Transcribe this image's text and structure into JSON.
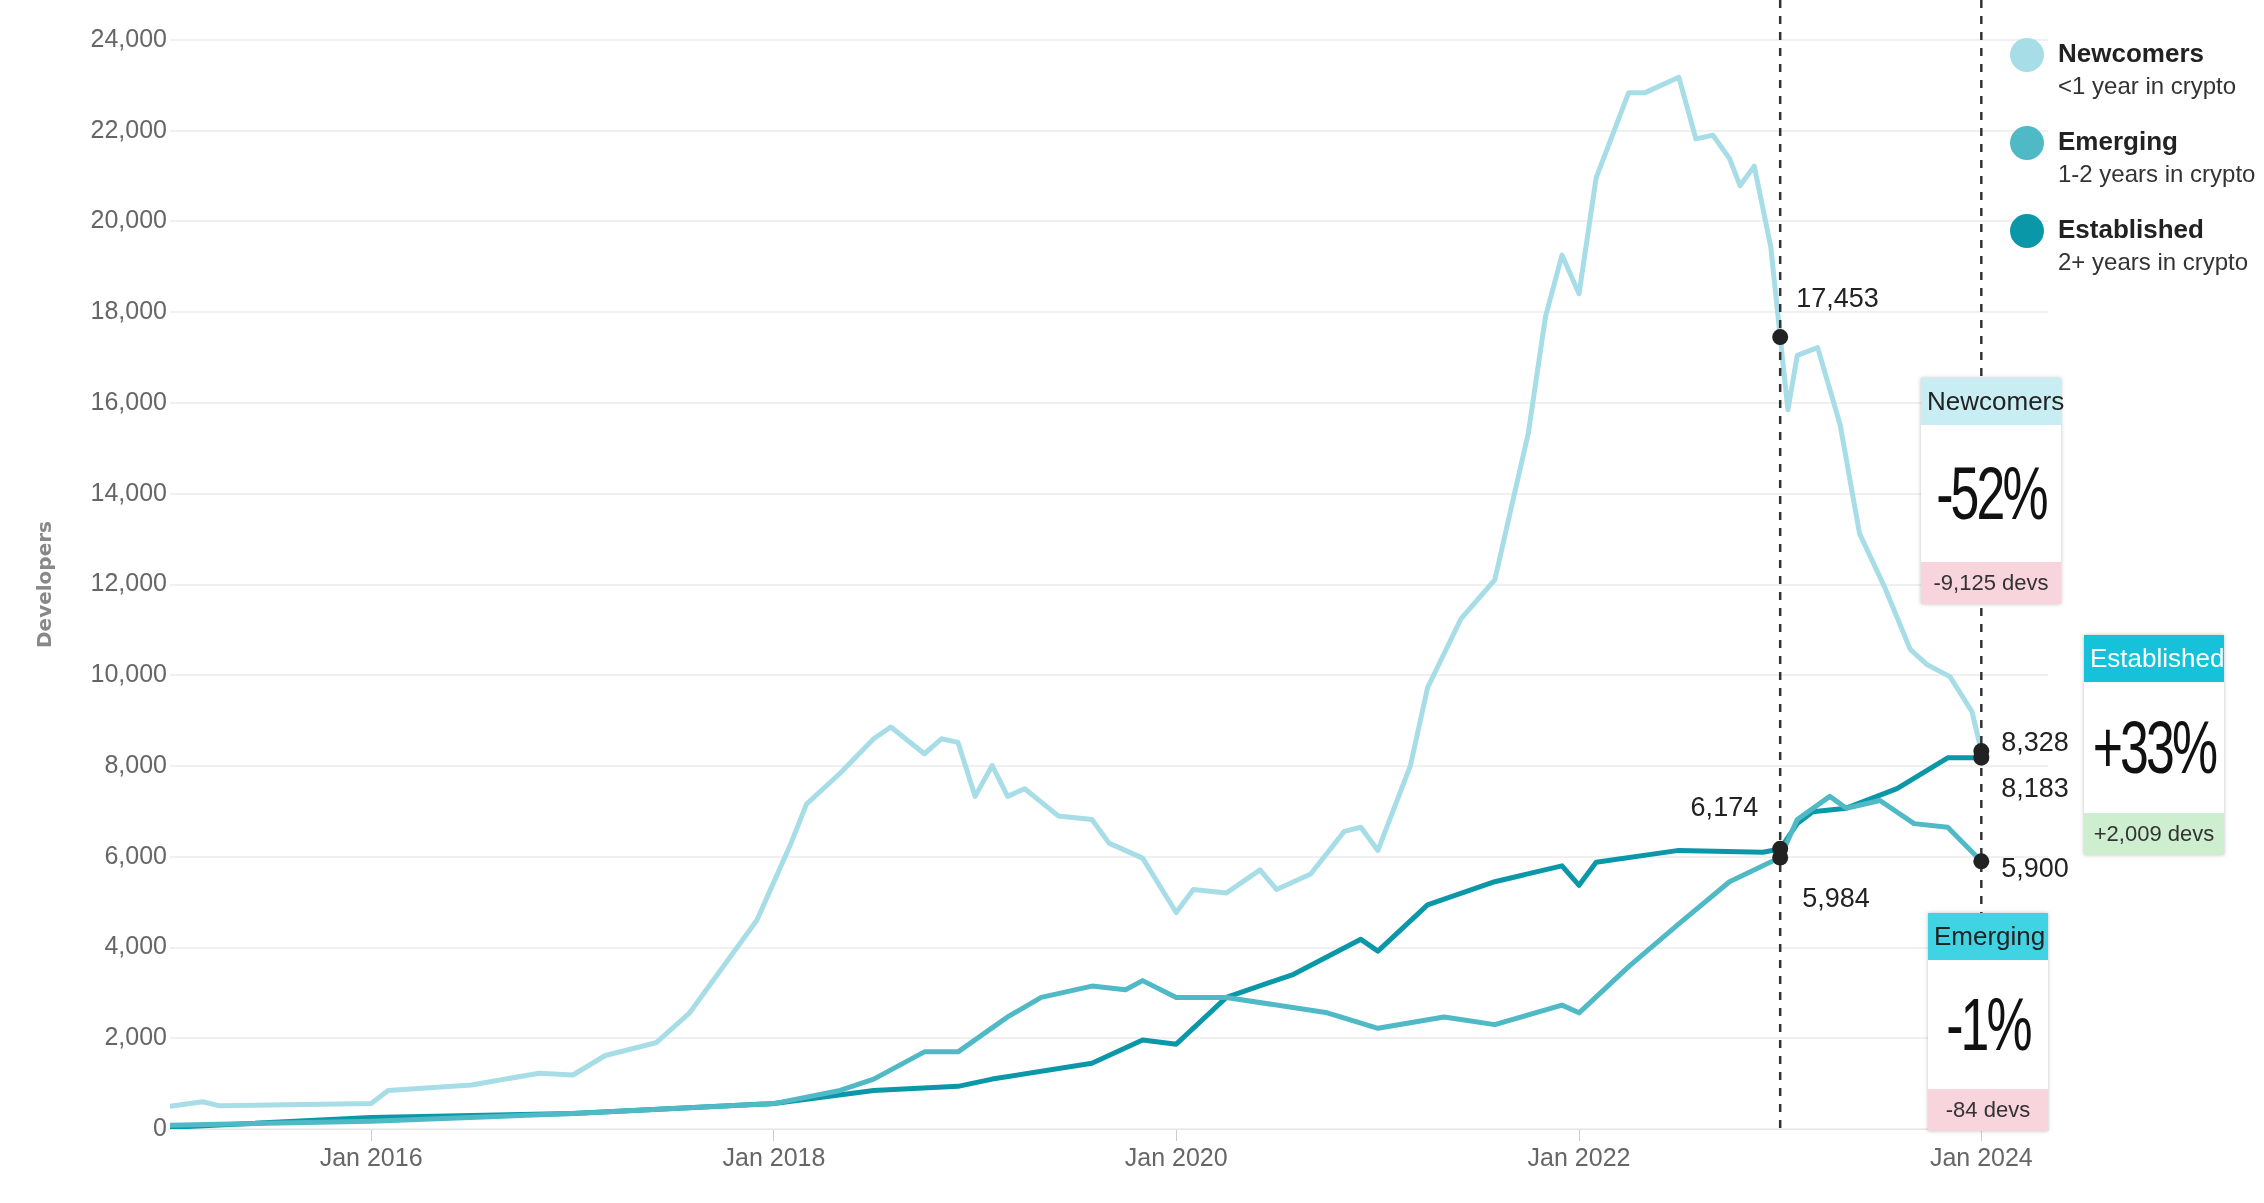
{
  "chart_data": {
    "type": "line",
    "ylabel": "Developers",
    "xlim": [
      "2015-01",
      "2024-05"
    ],
    "xticks": [
      {
        "value": "2016-01",
        "label": "Jan 2016"
      },
      {
        "value": "2018-01",
        "label": "Jan 2018"
      },
      {
        "value": "2020-01",
        "label": "Jan 2020"
      },
      {
        "value": "2022-01",
        "label": "Jan 2022"
      },
      {
        "value": "2024-01",
        "label": "Jan 2024"
      }
    ],
    "ylim": [
      0,
      24000
    ],
    "yticks": [
      0,
      {
        "value": 2000,
        "label": "2,000"
      },
      {
        "value": 4000,
        "label": "4,000"
      },
      {
        "value": 6000,
        "label": "6,000"
      },
      {
        "value": 8000,
        "label": "8,000"
      },
      {
        "value": 10000,
        "label": "10,000"
      },
      {
        "value": 12000,
        "label": "12,000"
      },
      {
        "value": 14000,
        "label": "14,000"
      },
      {
        "value": 16000,
        "label": "16,000"
      },
      {
        "value": 18000,
        "label": "18,000"
      },
      {
        "value": 20000,
        "label": "20,000"
      },
      {
        "value": 22000,
        "label": "22,000"
      },
      {
        "value": 24000,
        "label": "24,000"
      }
    ],
    "grid": "y",
    "legend": "top right",
    "series": [
      {
        "name": "Newcomers",
        "color": "#a6dde6",
        "x": [
          "2015-01",
          "2015-03",
          "2015-04",
          "2016-01",
          "2016-02",
          "2016-07",
          "2016-11",
          "2017-01",
          "2017-03",
          "2017-06",
          "2017-08",
          "2017-10",
          "2017-12",
          "2018-02",
          "2018-03",
          "2018-05",
          "2018-07",
          "2018-08",
          "2018-10",
          "2018-11",
          "2018-12",
          "2019-01",
          "2019-02",
          "2019-03",
          "2019-04",
          "2019-06",
          "2019-08",
          "2019-09",
          "2019-11",
          "2020-01",
          "2020-02",
          "2020-04",
          "2020-06",
          "2020-07",
          "2020-09",
          "2020-11",
          "2020-12",
          "2021-01",
          "2021-03",
          "2021-04",
          "2021-06",
          "2021-08",
          "2021-10",
          "2021-11",
          "2021-12",
          "2022-01",
          "2022-02",
          "2022-04",
          "2022-05",
          "2022-07",
          "2022-08",
          "2022-09",
          "2022-10-01",
          "2022-10-20",
          "2022-11-15",
          "2022-12-15",
          "2023-01-01",
          "2023-01-15",
          "2023-02-01",
          "2023-03-10",
          "2023-04-20",
          "2023-05-25",
          "2023-07-10",
          "2023-08-25",
          "2023-09-25",
          "2023-11-05",
          "2023-12-15",
          "2024-01-01"
        ],
        "values": [
          500,
          600,
          510,
          560,
          850,
          970,
          1230,
          1190,
          1620,
          1900,
          2560,
          3580,
          4600,
          6300,
          7160,
          7840,
          8600,
          8860,
          8270,
          8600,
          8520,
          7330,
          8010,
          7330,
          7500,
          6900,
          6820,
          6300,
          5970,
          4770,
          5280,
          5200,
          5710,
          5280,
          5620,
          6560,
          6650,
          6140,
          8010,
          9720,
          11250,
          12100,
          15340,
          17900,
          19260,
          18410,
          20960,
          22840,
          22840,
          23180,
          21820,
          21900,
          21390,
          20790,
          21220,
          19430,
          17453,
          15850,
          17050,
          17220,
          15510,
          13120,
          11930,
          10570,
          10230,
          9970,
          9200,
          8328
        ]
      },
      {
        "name": "Emerging",
        "color": "#4fb9c6",
        "x": [
          "2015-01",
          "2016-01",
          "2017-01",
          "2018-01",
          "2018-05",
          "2018-07",
          "2018-10",
          "2018-12",
          "2019-03",
          "2019-05",
          "2019-08",
          "2019-10",
          "2019-11",
          "2020-01",
          "2020-04",
          "2020-10",
          "2021-01",
          "2021-05",
          "2021-08",
          "2021-12",
          "2022-01",
          "2022-04",
          "2022-07",
          "2022-10",
          "2023-01",
          "2023-02",
          "2023-04",
          "2023-05",
          "2023-07",
          "2023-09",
          "2023-11",
          "2024-01"
        ],
        "values": [
          85,
          170,
          340,
          560,
          850,
          1100,
          1700,
          1700,
          2470,
          2900,
          3150,
          3070,
          3270,
          2900,
          2900,
          2560,
          2220,
          2470,
          2300,
          2730,
          2560,
          3580,
          4520,
          5450,
          5984,
          6820,
          7330,
          7070,
          7240,
          6730,
          6650,
          5900
        ]
      },
      {
        "name": "Established",
        "color": "#0a97a8",
        "x": [
          "2015-01",
          "2016-01",
          "2017-01",
          "2018-01",
          "2018-07",
          "2018-12",
          "2019-02",
          "2019-08",
          "2019-11",
          "2020-01",
          "2020-04",
          "2020-08",
          "2020-12",
          "2021-01",
          "2021-04",
          "2021-08",
          "2021-12",
          "2022-01",
          "2022-02",
          "2022-07",
          "2022-12",
          "2023-01",
          "2023-02",
          "2023-03",
          "2023-05",
          "2023-08",
          "2023-11",
          "2024-01"
        ],
        "values": [
          35,
          255,
          340,
          560,
          850,
          940,
          1100,
          1450,
          1960,
          1870,
          2900,
          3410,
          4180,
          3920,
          4940,
          5450,
          5800,
          5370,
          5880,
          6140,
          6100,
          6174,
          6730,
          6990,
          7070,
          7500,
          8180,
          8183
        ]
      }
    ],
    "ref_lines": [
      {
        "axis": "x",
        "value": "2023-01",
        "line_style": "dashed",
        "color": "#333333"
      },
      {
        "axis": "x",
        "value": "2024-01",
        "line_style": "dashed",
        "color": "#333333"
      }
    ],
    "annotations": [
      "<1 year in crypto",
      "1-2 years in crypto",
      "2+ years in crypto",
      "Newcomers",
      "-52%",
      "-9,125 devs",
      "Established",
      "+33%",
      "+2,009 devs",
      "Emerging",
      "-1%",
      "-84 devs",
      {
        "text": "17,453",
        "x": "2023-01",
        "y": 17453
      },
      {
        "text": "6,174",
        "x": "2023-01",
        "y": 6174
      },
      {
        "text": "5,984",
        "x": "2023-01",
        "y": 5984
      },
      {
        "text": "8,328",
        "x": "2024-01",
        "y": 8328
      },
      {
        "text": "8,183",
        "x": "2024-01",
        "y": 8183
      },
      {
        "text": "5,900",
        "x": "2024-01",
        "y": 5900
      }
    ]
  }
}
